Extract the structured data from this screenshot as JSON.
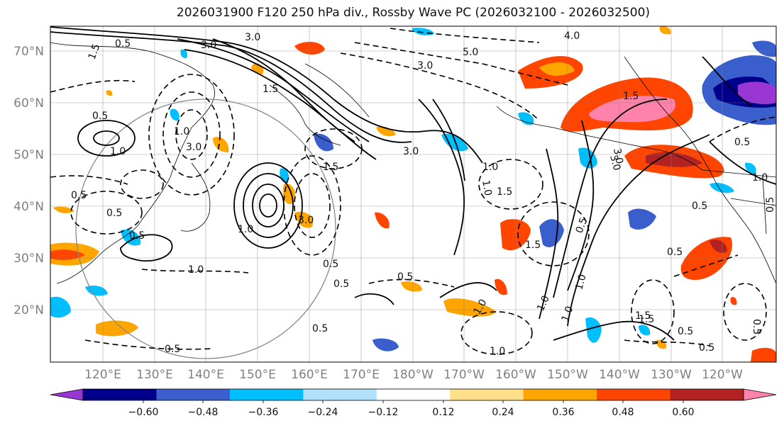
{
  "title": "2026031900 F120 250 hPa div., Rossby Wave PC (2026032100 - 2026032500)",
  "map": {
    "lat_labels": [
      "70°N",
      "60°N",
      "50°N",
      "40°N",
      "30°N",
      "20°N"
    ],
    "lon_labels": [
      "120°E",
      "130°E",
      "140°E",
      "150°E",
      "160°E",
      "170°E",
      "180°W",
      "170°W",
      "160°W",
      "150°W",
      "140°W",
      "130°W",
      "120°W"
    ],
    "contour_labels": [
      "0.5",
      "1.5",
      "3.0",
      "3.0",
      "3.0",
      "1.5",
      "0.5",
      "1.0",
      "1.0",
      "1.5",
      "3.0",
      "5.0",
      "4.0",
      "3.0",
      "1.5",
      "0.5",
      "1.0",
      "1.0",
      "0.5",
      "0.5",
      "1.0",
      "1.5",
      "3.0",
      "3.0",
      "0.5",
      "1.0",
      "1.5",
      "0.5",
      "0.5",
      "1.0",
      "1.5",
      "0.5",
      "0.5",
      "1.0",
      "0.5",
      "1.5",
      "3.0",
      "1.0",
      "0.5",
      "0.5",
      "0.5",
      "1.0",
      "0.5",
      "1.0",
      "1.0",
      "0.5",
      "0.5",
      "0.5"
    ]
  },
  "colorbar": {
    "ticks": [
      "−0.60",
      "−0.48",
      "−0.36",
      "−0.24",
      "−0.12",
      "0.12",
      "0.24",
      "0.36",
      "0.48",
      "0.60"
    ],
    "colors": [
      "#9a36d4",
      "#00008b",
      "#3a5fcd",
      "#00bfff",
      "#b0e0fa",
      "#ffffff",
      "#ffe08a",
      "#ffa500",
      "#ff4500",
      "#b22222",
      "#ff82ab"
    ]
  }
}
